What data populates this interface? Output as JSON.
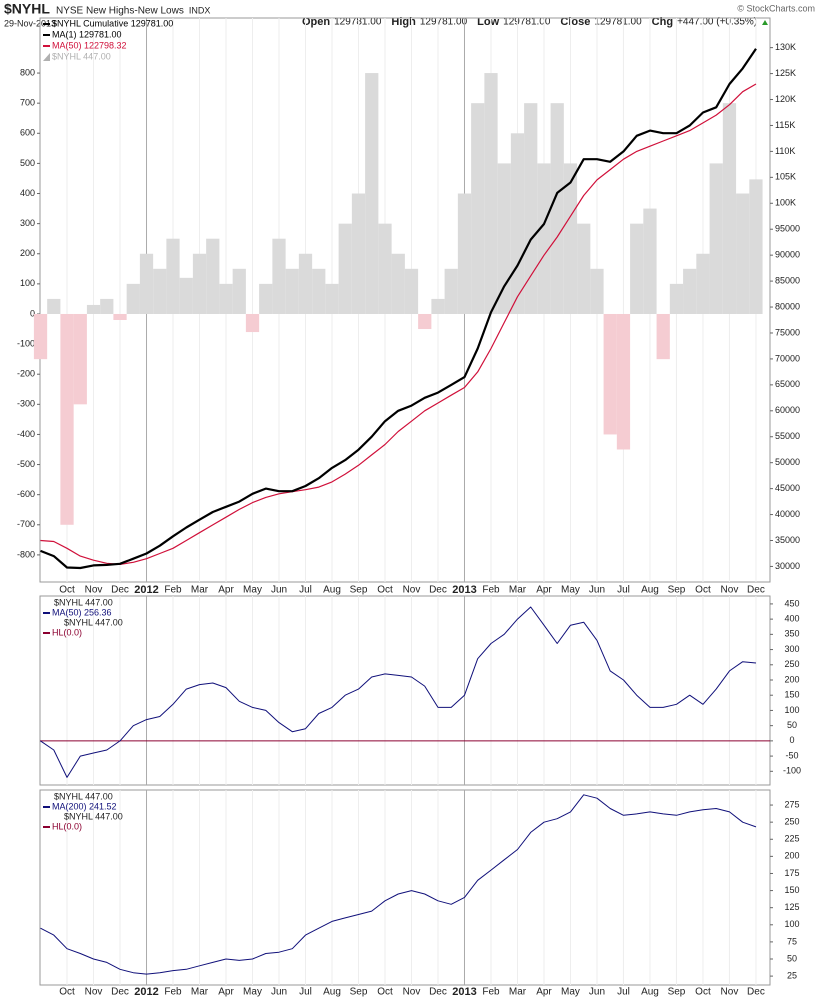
{
  "header": {
    "symbol": "$NYHL",
    "name": "NYSE New Highs-New Lows",
    "exchange": "INDX",
    "date": "29-Nov-2013",
    "credit": "© StockCharts.com",
    "quote": [
      {
        "label": "Open",
        "value": "129781.00"
      },
      {
        "label": "High",
        "value": "129781.00"
      },
      {
        "label": "Low",
        "value": "129781.00"
      },
      {
        "label": "Close",
        "value": "129781.00"
      },
      {
        "label": "Chg",
        "value": "+447.00 (+0.35%)"
      }
    ]
  },
  "chart_data": [
    {
      "type": "line",
      "yaxis_side": "left",
      "legend": [
        {
          "label": "$NYHL  Cumulative 129781.00",
          "color": "#000000"
        },
        {
          "label": "MA(1) 129781.00",
          "color": "#000000"
        },
        {
          "label": "MA(50) 122798.32",
          "color": "#d0103a"
        },
        {
          "label": "$NYHL  447.00",
          "color": "#b0b0b0"
        }
      ],
      "x": [
        -1,
        -0.5,
        0,
        0.5,
        1,
        1.5,
        2,
        2.5,
        3,
        3.5,
        4,
        4.5,
        5,
        5.5,
        6,
        6.5,
        7,
        7.5,
        8,
        8.5,
        9,
        9.5,
        10,
        10.5,
        11,
        11.5,
        12,
        12.5,
        13,
        13.5,
        14,
        14.5,
        15,
        15.5,
        16,
        16.5,
        17,
        17.5,
        18,
        18.5,
        19,
        19.5,
        20,
        20.5,
        21,
        21.5,
        22,
        22.5,
        23,
        23.5,
        24,
        24.5,
        25,
        25.5,
        26
      ],
      "xlim": [
        -1.02,
        26.53
      ],
      "xticks": [
        {
          "value": 0,
          "label": "Oct"
        },
        {
          "value": 1,
          "label": "Nov"
        },
        {
          "value": 2,
          "label": "Dec"
        },
        {
          "value": 3,
          "label": "2012"
        },
        {
          "value": 4,
          "label": "Feb"
        },
        {
          "value": 5,
          "label": "Mar"
        },
        {
          "value": 6,
          "label": "Apr"
        },
        {
          "value": 7,
          "label": "May"
        },
        {
          "value": 8,
          "label": "Jun"
        },
        {
          "value": 9,
          "label": "Jul"
        },
        {
          "value": 10,
          "label": "Aug"
        },
        {
          "value": 11,
          "label": "Sep"
        },
        {
          "value": 12,
          "label": "Oct"
        },
        {
          "value": 13,
          "label": "Nov"
        },
        {
          "value": 14,
          "label": "Dec"
        },
        {
          "value": 15,
          "label": "2013"
        },
        {
          "value": 16,
          "label": "Feb"
        },
        {
          "value": 17,
          "label": "Mar"
        },
        {
          "value": 18,
          "label": "Apr"
        },
        {
          "value": 19,
          "label": "May"
        },
        {
          "value": 20,
          "label": "Jun"
        },
        {
          "value": 21,
          "label": "Jul"
        },
        {
          "value": 22,
          "label": "Aug"
        },
        {
          "value": 23,
          "label": "Sep"
        },
        {
          "value": 24,
          "label": "Oct"
        },
        {
          "value": 25,
          "label": "Nov"
        },
        {
          "value": 26,
          "label": "Dec"
        }
      ],
      "ylim": [
        -890,
        943
      ],
      "yticks": [
        -800,
        -700,
        -600,
        -500,
        -400,
        -300,
        -200,
        -100,
        0,
        100,
        200,
        300,
        400,
        500,
        600,
        700,
        800
      ],
      "y2lim": [
        27000,
        133400
      ],
      "y2ticks": [
        {
          "value": 30000,
          "label": "30000"
        },
        {
          "value": 35000,
          "label": "35000"
        },
        {
          "value": 40000,
          "label": "40000"
        },
        {
          "value": 45000,
          "label": "45000"
        },
        {
          "value": 50000,
          "label": "50000"
        },
        {
          "value": 55000,
          "label": "55000"
        },
        {
          "value": 60000,
          "label": "60000"
        },
        {
          "value": 65000,
          "label": "65000"
        },
        {
          "value": 70000,
          "label": "70000"
        },
        {
          "value": 75000,
          "label": "75000"
        },
        {
          "value": 80000,
          "label": "80000"
        },
        {
          "value": 85000,
          "label": "85000"
        },
        {
          "value": 90000,
          "label": "90000"
        },
        {
          "value": 95000,
          "label": "95000"
        },
        {
          "value": 100000,
          "label": "100K"
        },
        {
          "value": 105000,
          "label": "105K"
        },
        {
          "value": 110000,
          "label": "110K"
        },
        {
          "value": 115000,
          "label": "115K"
        },
        {
          "value": 120000,
          "label": "120K"
        },
        {
          "value": 125000,
          "label": "125K"
        },
        {
          "value": 130000,
          "label": "130K"
        }
      ],
      "series": [
        {
          "style": "bar",
          "color": "#dadada",
          "negative_color": "#f5ccd2",
          "values": [
            -150,
            50,
            -700,
            -300,
            30,
            50,
            -20,
            100,
            200,
            150,
            250,
            120,
            200,
            250,
            100,
            150,
            -60,
            100,
            250,
            150,
            200,
            150,
            100,
            300,
            400,
            800,
            300,
            200,
            150,
            -50,
            50,
            150,
            400,
            700,
            800,
            500,
            600,
            700,
            500,
            700,
            500,
            300,
            150,
            -400,
            -450,
            300,
            350,
            -150,
            100,
            150,
            200,
            500,
            700,
            400,
            447
          ]
        },
        {
          "style": "line",
          "axis": "y2",
          "color": "#d0103a",
          "width": 1.2,
          "values": [
            35000,
            34800,
            33500,
            32000,
            31200,
            30600,
            30400,
            30800,
            31500,
            32500,
            33500,
            35000,
            36500,
            38000,
            39500,
            41000,
            42300,
            43300,
            44000,
            44400,
            44800,
            45300,
            46300,
            47800,
            49500,
            51500,
            53500,
            56000,
            58000,
            60000,
            61500,
            63000,
            64500,
            67500,
            72000,
            77000,
            82000,
            86000,
            90000,
            93500,
            97500,
            101500,
            104500,
            106500,
            108500,
            110000,
            111000,
            112000,
            113000,
            114000,
            115500,
            117000,
            119000,
            121500,
            123000
          ]
        },
        {
          "style": "line",
          "axis": "y2",
          "color": "#000000",
          "width": 2.2,
          "values": [
            33000,
            32000,
            29800,
            29700,
            30200,
            30300,
            30500,
            31500,
            32500,
            34000,
            35800,
            37500,
            39000,
            40500,
            41500,
            42500,
            44000,
            45000,
            44500,
            44500,
            45500,
            47000,
            49000,
            50500,
            52500,
            55000,
            58000,
            60000,
            61000,
            62500,
            63500,
            65000,
            66500,
            72000,
            79000,
            84000,
            88000,
            93000,
            96000,
            102000,
            104000,
            108500,
            108500,
            108000,
            110000,
            113000,
            114000,
            113500,
            113500,
            115000,
            117500,
            118500,
            123000,
            126000,
            129781
          ]
        }
      ]
    },
    {
      "type": "line",
      "yaxis_side": "right",
      "title": "$NYHL  447.00",
      "legend": [
        {
          "label": "MA(50) 256.36",
          "color": "#10107a"
        },
        {
          "label": "$NYHL  447.00",
          "color": null
        },
        {
          "label": "HL(0.0)",
          "color": "#8b0030"
        }
      ],
      "level": {
        "value": 0,
        "color": "#8b0030"
      },
      "x": [
        -1,
        -0.5,
        0,
        0.5,
        1,
        1.5,
        2,
        2.5,
        3,
        3.5,
        4,
        4.5,
        5,
        5.5,
        6,
        6.5,
        7,
        7.5,
        8,
        8.5,
        9,
        9.5,
        10,
        10.5,
        11,
        11.5,
        12,
        12.5,
        13,
        13.5,
        14,
        14.5,
        15,
        15.5,
        16,
        16.5,
        17,
        17.5,
        18,
        18.5,
        19,
        19.5,
        20,
        20.5,
        21,
        21.5,
        22,
        22.5,
        23,
        23.5,
        24,
        24.5,
        25,
        25.5,
        26
      ],
      "xlim": [
        -1.02,
        26.53
      ],
      "ylim": [
        -145,
        476
      ],
      "yticks": [
        -100,
        -50,
        0,
        50,
        100,
        150,
        200,
        250,
        300,
        350,
        400,
        450
      ],
      "series": [
        {
          "style": "line",
          "color": "#10107a",
          "width": 1,
          "values": [
            0,
            -30,
            -120,
            -50,
            -40,
            -30,
            0,
            50,
            70,
            80,
            120,
            170,
            185,
            190,
            175,
            130,
            110,
            100,
            60,
            30,
            40,
            90,
            110,
            150,
            170,
            210,
            220,
            215,
            210,
            180,
            110,
            110,
            150,
            270,
            320,
            350,
            400,
            440,
            380,
            320,
            380,
            390,
            330,
            230,
            200,
            150,
            110,
            110,
            120,
            150,
            120,
            170,
            230,
            260,
            256
          ]
        }
      ]
    },
    {
      "type": "line",
      "yaxis_side": "right",
      "title": "$NYHL  447.00",
      "legend": [
        {
          "label": "MA(200) 241.52",
          "color": "#10107a"
        },
        {
          "label": "$NYHL  447.00",
          "color": null
        },
        {
          "label": "HL(0.0)",
          "color": "#8b0030"
        }
      ],
      "level": {
        "value": 0,
        "color": "#8b0030"
      },
      "x": [
        -1,
        -0.5,
        0,
        0.5,
        1,
        1.5,
        2,
        2.5,
        3,
        3.5,
        4,
        4.5,
        5,
        5.5,
        6,
        6.5,
        7,
        7.5,
        8,
        8.5,
        9,
        9.5,
        10,
        10.5,
        11,
        11.5,
        12,
        12.5,
        13,
        13.5,
        14,
        14.5,
        15,
        15.5,
        16,
        16.5,
        17,
        17.5,
        18,
        18.5,
        19,
        19.5,
        20,
        20.5,
        21,
        21.5,
        22,
        22.5,
        23,
        23.5,
        24,
        24.5,
        25,
        25.5,
        26
      ],
      "xlim": [
        -1.02,
        26.53
      ],
      "xticks": [
        {
          "value": 0,
          "label": "Oct"
        },
        {
          "value": 1,
          "label": "Nov"
        },
        {
          "value": 2,
          "label": "Dec"
        },
        {
          "value": 3,
          "label": "2012"
        },
        {
          "value": 4,
          "label": "Feb"
        },
        {
          "value": 5,
          "label": "Mar"
        },
        {
          "value": 6,
          "label": "Apr"
        },
        {
          "value": 7,
          "label": "May"
        },
        {
          "value": 8,
          "label": "Jun"
        },
        {
          "value": 9,
          "label": "Jul"
        },
        {
          "value": 10,
          "label": "Aug"
        },
        {
          "value": 11,
          "label": "Sep"
        },
        {
          "value": 12,
          "label": "Oct"
        },
        {
          "value": 13,
          "label": "Nov"
        },
        {
          "value": 14,
          "label": "Dec"
        },
        {
          "value": 15,
          "label": "2013"
        },
        {
          "value": 16,
          "label": "Feb"
        },
        {
          "value": 17,
          "label": "Mar"
        },
        {
          "value": 18,
          "label": "Apr"
        },
        {
          "value": 19,
          "label": "May"
        },
        {
          "value": 20,
          "label": "Jun"
        },
        {
          "value": 21,
          "label": "Jul"
        },
        {
          "value": 22,
          "label": "Aug"
        },
        {
          "value": 23,
          "label": "Sep"
        },
        {
          "value": 24,
          "label": "Oct"
        },
        {
          "value": 25,
          "label": "Nov"
        },
        {
          "value": 26,
          "label": "Dec"
        }
      ],
      "ylim": [
        12,
        297
      ],
      "yticks": [
        25,
        50,
        75,
        100,
        125,
        150,
        175,
        200,
        225,
        250,
        275
      ],
      "series": [
        {
          "style": "line",
          "color": "#10107a",
          "width": 1,
          "values": [
            95,
            85,
            65,
            58,
            50,
            45,
            35,
            30,
            28,
            30,
            33,
            35,
            40,
            45,
            50,
            48,
            50,
            58,
            60,
            65,
            85,
            95,
            105,
            110,
            115,
            120,
            135,
            145,
            150,
            145,
            135,
            130,
            140,
            165,
            180,
            195,
            210,
            235,
            250,
            255,
            265,
            290,
            285,
            270,
            260,
            262,
            265,
            262,
            260,
            265,
            268,
            270,
            265,
            250,
            243
          ]
        }
      ]
    }
  ]
}
